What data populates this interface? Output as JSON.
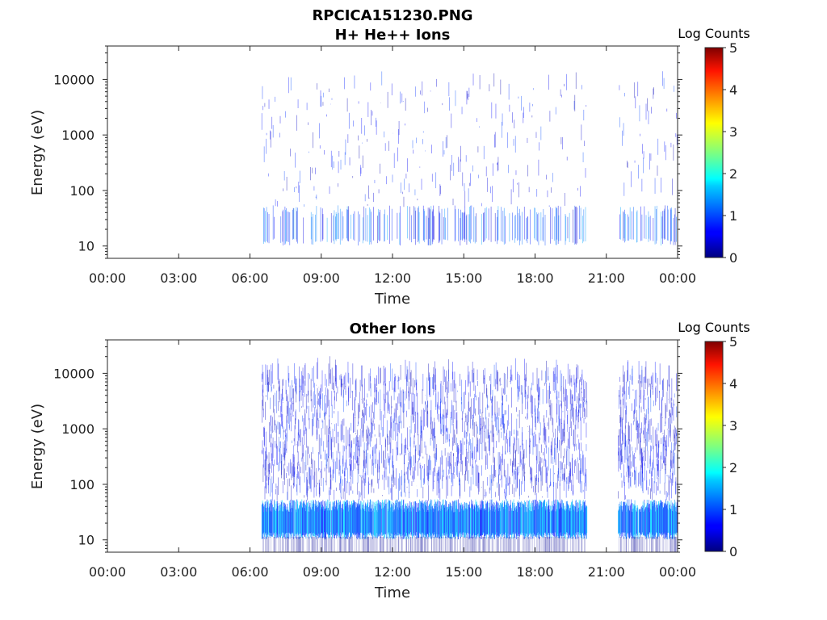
{
  "figure": {
    "title": "RPCICA151230.PNG"
  },
  "chart_data": [
    {
      "type": "heatmap",
      "title": "H+ He++ Ions",
      "xlabel": "Time",
      "ylabel": "Energy (eV)",
      "xticks": [
        "00:00",
        "03:00",
        "06:00",
        "09:00",
        "12:00",
        "15:00",
        "18:00",
        "21:00",
        "00:00"
      ],
      "xlim_hours": [
        0,
        24
      ],
      "yscale": "log",
      "ylim": [
        6,
        40000
      ],
      "yticks": [
        {
          "value": 10,
          "label": "10"
        },
        {
          "value": 100,
          "label": "100"
        },
        {
          "value": 1000,
          "label": "1000"
        },
        {
          "value": 10000,
          "label": "10000"
        }
      ],
      "colorbar": {
        "label": "Log Counts",
        "range": [
          0,
          5
        ],
        "ticks": [
          "0",
          "1",
          "2",
          "3",
          "4",
          "5"
        ],
        "colormap": "jet"
      },
      "data_segments_hours": [
        [
          6.5,
          20.2
        ],
        [
          21.5,
          24.0
        ]
      ],
      "dominant_band_eV": [
        12,
        45
      ],
      "max_log_counts": 1.5,
      "density": "sparse"
    },
    {
      "type": "heatmap",
      "title": "Other Ions",
      "xlabel": "Time",
      "ylabel": "Energy (eV)",
      "xticks": [
        "00:00",
        "03:00",
        "06:00",
        "09:00",
        "12:00",
        "15:00",
        "18:00",
        "21:00",
        "00:00"
      ],
      "xlim_hours": [
        0,
        24
      ],
      "yscale": "log",
      "ylim": [
        6,
        40000
      ],
      "yticks": [
        {
          "value": 10,
          "label": "10"
        },
        {
          "value": 100,
          "label": "100"
        },
        {
          "value": 1000,
          "label": "1000"
        },
        {
          "value": 10000,
          "label": "10000"
        }
      ],
      "colorbar": {
        "label": "Log Counts",
        "range": [
          0,
          5
        ],
        "ticks": [
          "0",
          "1",
          "2",
          "3",
          "4",
          "5"
        ],
        "colormap": "jet"
      },
      "data_segments_hours": [
        [
          6.5,
          20.2
        ],
        [
          21.5,
          24.0
        ]
      ],
      "dominant_band_eV": [
        12,
        45
      ],
      "max_log_counts": 1.8,
      "density": "dense"
    }
  ]
}
